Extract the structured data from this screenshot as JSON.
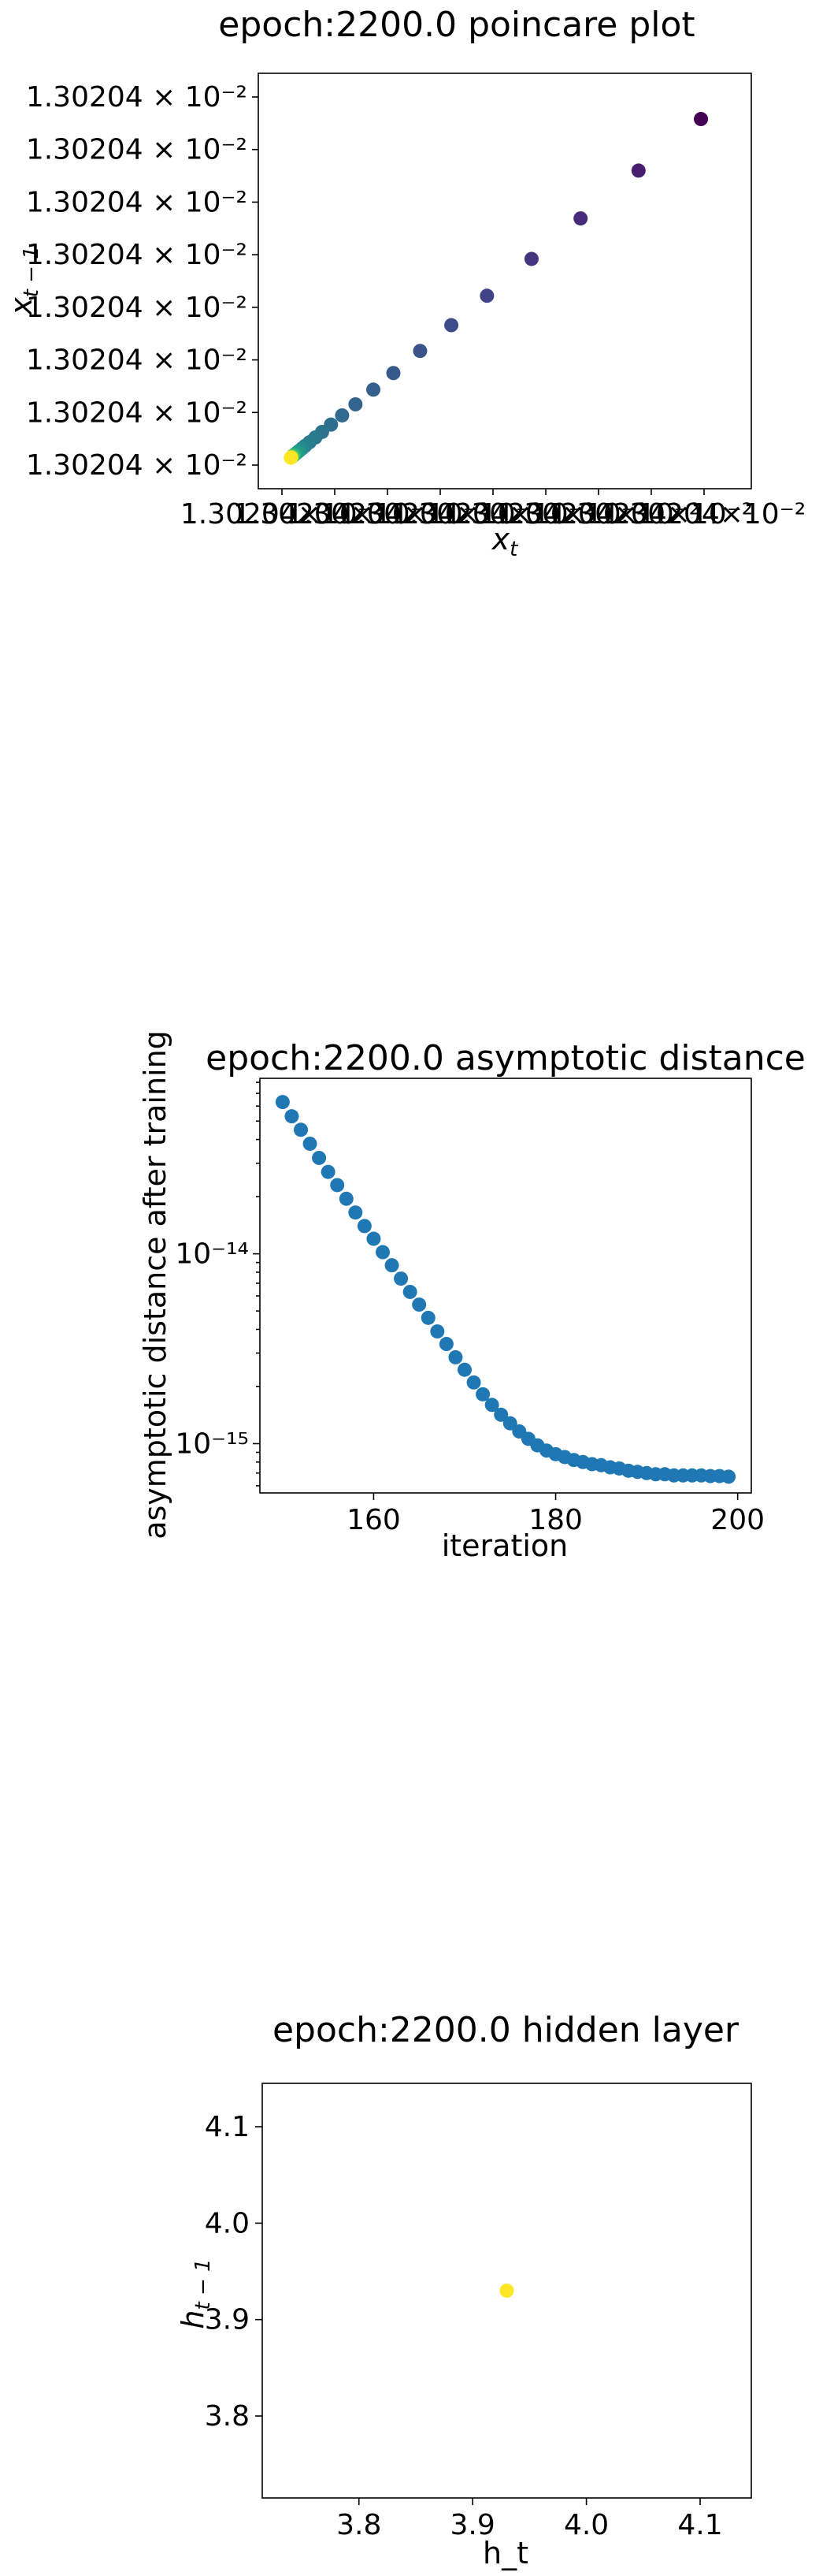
{
  "chart_data": [
    {
      "type": "scatter",
      "title": "epoch:2200.0 poincare plot",
      "xlabel": "x_t",
      "ylabel": "x_{t-1}",
      "y_tick_labels": [
        "1.30204 × 10⁻²",
        "1.30204 × 10⁻²",
        "1.30204 × 10⁻²",
        "1.30204 × 10⁻²",
        "1.30204 × 10⁻²",
        "1.30204 × 10⁻²",
        "1.30204 × 10⁻²",
        "1.30204 × 10⁻²"
      ],
      "x_tick_labels": [
        "1.30204×10⁻²",
        "1.30204×10⁻²",
        "1.30204×10⁻²",
        "1.30204×10⁻²",
        "1.30204×10⁻²",
        "1.30204×10⁻²",
        "1.30204×10⁻²",
        "1.30204×10⁻²",
        "1.30204×10⁻²"
      ],
      "x_display_range": [
        0,
        1
      ],
      "y_display_range": [
        0,
        1
      ],
      "colormap": "viridis",
      "points_normalized": {
        "x": [
          0.94,
          0.8,
          0.67,
          0.56,
          0.46,
          0.38,
          0.31,
          0.25,
          0.205,
          0.165,
          0.135,
          0.11,
          0.09,
          0.075,
          0.062,
          0.052,
          0.045,
          0.039,
          0.035,
          0.031,
          0.028,
          0.026,
          0.024,
          0.022,
          0.021,
          0.02
        ],
        "y": [
          0.94,
          0.8,
          0.67,
          0.56,
          0.46,
          0.38,
          0.31,
          0.25,
          0.205,
          0.165,
          0.135,
          0.11,
          0.09,
          0.075,
          0.062,
          0.052,
          0.045,
          0.039,
          0.035,
          0.031,
          0.028,
          0.026,
          0.024,
          0.022,
          0.021,
          0.02
        ],
        "c": [
          0.0,
          0.08,
          0.12,
          0.16,
          0.2,
          0.23,
          0.26,
          0.28,
          0.3,
          0.32,
          0.34,
          0.36,
          0.38,
          0.4,
          0.42,
          0.44,
          0.47,
          0.5,
          0.53,
          0.56,
          0.6,
          0.65,
          0.7,
          0.8,
          0.9,
          1.0
        ]
      },
      "notes": "All tick labels display the same value 1.30204×10⁻²; positions normalized to axis range."
    },
    {
      "type": "scatter",
      "title": "epoch:2200.0 asymptotic distance",
      "xlabel": "iteration",
      "ylabel": "asymptotic distance after training",
      "x_ticks": [
        160,
        180,
        200
      ],
      "xlim": [
        147.5,
        201.5
      ],
      "yscale": "log",
      "ylim": [
        5.5e-16,
        8.4e-14
      ],
      "y_ticks": [
        {
          "value": 1e-14,
          "label": "10⁻¹⁴"
        },
        {
          "value": 1e-15,
          "label": "10⁻¹⁵"
        }
      ],
      "color": "#1f77b4",
      "x": [
        150,
        151,
        152,
        153,
        154,
        155,
        156,
        157,
        158,
        159,
        160,
        161,
        162,
        163,
        164,
        165,
        166,
        167,
        168,
        169,
        170,
        171,
        172,
        173,
        174,
        175,
        176,
        177,
        178,
        179,
        180,
        181,
        182,
        183,
        184,
        185,
        186,
        187,
        188,
        189,
        190,
        191,
        192,
        193,
        194,
        195,
        196,
        197,
        198,
        199
      ],
      "y": [
        6.3e-14,
        5.3e-14,
        4.5e-14,
        3.8e-14,
        3.2e-14,
        2.7e-14,
        2.3e-14,
        1.95e-14,
        1.65e-14,
        1.4e-14,
        1.2e-14,
        1.02e-14,
        8.7e-15,
        7.4e-15,
        6.3e-15,
        5.4e-15,
        4.6e-15,
        3.9e-15,
        3.35e-15,
        2.85e-15,
        2.45e-15,
        2.1e-15,
        1.82e-15,
        1.6e-15,
        1.42e-15,
        1.28e-15,
        1.16e-15,
        1.06e-15,
        9.8e-16,
        9.2e-16,
        8.8e-16,
        8.5e-16,
        8.2e-16,
        8e-16,
        7.8e-16,
        7.7e-16,
        7.5e-16,
        7.4e-16,
        7.2e-16,
        7.1e-16,
        7e-16,
        6.9e-16,
        6.9e-16,
        6.8e-16,
        6.8e-16,
        6.8e-16,
        6.8e-16,
        6.75e-16,
        6.75e-16,
        6.7e-16
      ]
    },
    {
      "type": "scatter",
      "title": "epoch:2200.0 hidden layer",
      "xlabel": "h_t",
      "ylabel": "h_{t-1}",
      "xlim": [
        3.715,
        4.145
      ],
      "ylim": [
        3.715,
        4.145
      ],
      "x_ticks": [
        3.8,
        3.9,
        4.0,
        4.1
      ],
      "y_ticks": [
        3.8,
        3.9,
        4.0,
        4.1
      ],
      "x_tick_labels": [
        "3.8",
        "3.9",
        "4.0",
        "4.1"
      ],
      "y_tick_labels": [
        "3.8",
        "3.9",
        "4.0",
        "4.1"
      ],
      "color": "#fde725",
      "x": [
        3.93
      ],
      "y": [
        3.93
      ]
    }
  ]
}
